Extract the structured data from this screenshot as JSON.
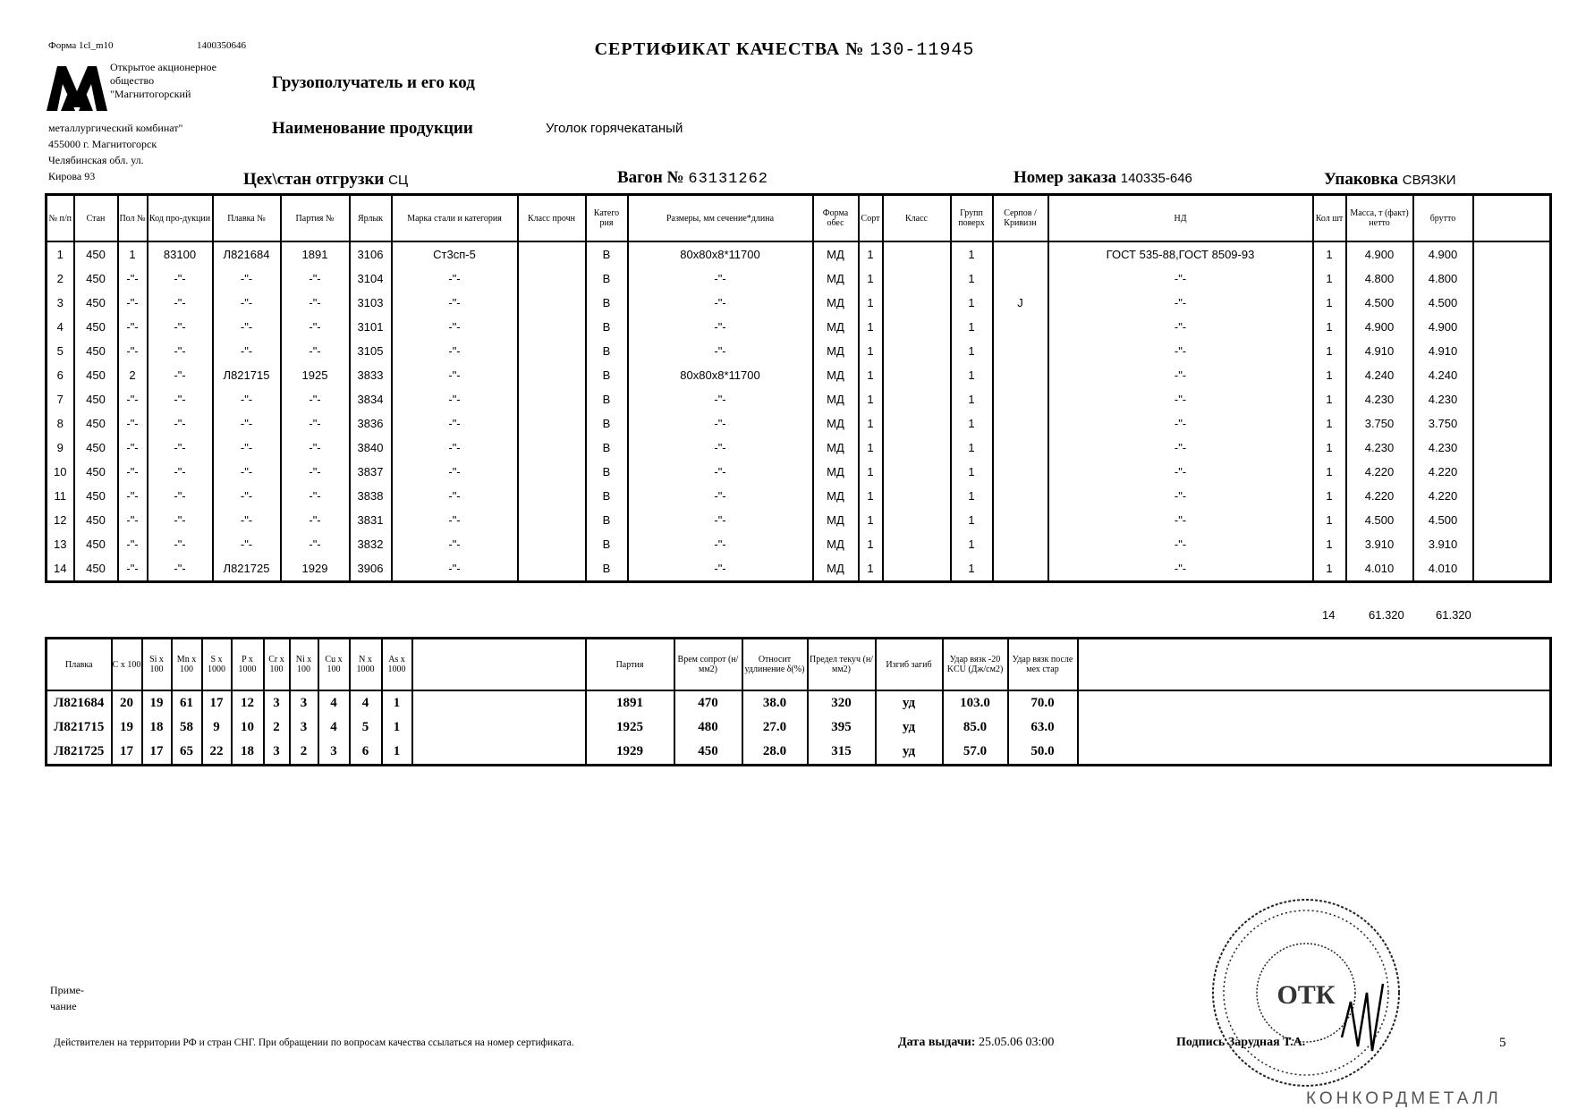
{
  "header": {
    "form_code": "Форма 1cl_m10",
    "doc_code": "1400350646",
    "title": "СЕРТИФИКАТ КАЧЕСТВА №",
    "certificate_number": "130-11945",
    "company_lines": [
      "Открытое акционерное",
      "общество",
      "\"Магнитогорский",
      "металлургический комбинат\"",
      "455000 г. Магнитогорск",
      "Челябинская обл. ул.",
      "Кирова 93"
    ],
    "consignee_label": "Грузополучатель и его код",
    "product_label": "Наименование продукции",
    "product_value": "Уголок горячекатаный",
    "shop_label": "Цех\\стан отгрузки",
    "shop_value": "СЦ",
    "wagon_label": "Вагон №",
    "wagon_value": "63131262",
    "order_label": "Номер заказа",
    "order_value": "140335-646",
    "packing_label": "Упаковка",
    "packing_value": "СВЯЗКИ"
  },
  "main_table": {
    "columns": [
      "№ п/п",
      "Стан",
      "Пол №",
      "Код про-дукции",
      "Плавка №",
      "Партия №",
      "Ярлык",
      "Марка стали и категория",
      "Класс прочн",
      "Катего рия",
      "Размеры, мм сечение*длина",
      "Форма обес",
      "Сорт",
      "Класс",
      "Групп поверх",
      "Серпов /Кривизн",
      "НД",
      "Кол шт",
      "Масса, т (факт) нетто",
      "брутто",
      ""
    ],
    "rows": [
      [
        "1",
        "450",
        "1",
        "83100",
        "Л821684",
        "1891",
        "3106",
        "Ст3сп-5",
        "",
        "В",
        "80х80х8*11700",
        "МД",
        "1",
        "",
        "1",
        "",
        "ГОСТ 535-88,ГОСТ 8509-93",
        "1",
        "4.900",
        "4.900",
        ""
      ],
      [
        "2",
        "450",
        "-\"-",
        "-\"-",
        "-\"-",
        "-\"-",
        "3104",
        "-\"-",
        "",
        "В",
        "-\"-",
        "МД",
        "1",
        "",
        "1",
        "",
        "-\"-",
        "1",
        "4.800",
        "4.800",
        ""
      ],
      [
        "3",
        "450",
        "-\"-",
        "-\"-",
        "-\"-",
        "-\"-",
        "3103",
        "-\"-",
        "",
        "В",
        "-\"-",
        "МД",
        "1",
        "",
        "1",
        "J",
        "-\"-",
        "1",
        "4.500",
        "4.500",
        ""
      ],
      [
        "4",
        "450",
        "-\"-",
        "-\"-",
        "-\"-",
        "-\"-",
        "3101",
        "-\"-",
        "",
        "В",
        "-\"-",
        "МД",
        "1",
        "",
        "1",
        "",
        "-\"-",
        "1",
        "4.900",
        "4.900",
        ""
      ],
      [
        "5",
        "450",
        "-\"-",
        "-\"-",
        "-\"-",
        "-\"-",
        "3105",
        "-\"-",
        "",
        "В",
        "-\"-",
        "МД",
        "1",
        "",
        "1",
        "",
        "-\"-",
        "1",
        "4.910",
        "4.910",
        ""
      ],
      [
        "6",
        "450",
        "2",
        "-\"-",
        "Л821715",
        "1925",
        "3833",
        "-\"-",
        "",
        "В",
        "80х80х8*11700",
        "МД",
        "1",
        "",
        "1",
        "",
        "-\"-",
        "1",
        "4.240",
        "4.240",
        ""
      ],
      [
        "7",
        "450",
        "-\"-",
        "-\"-",
        "-\"-",
        "-\"-",
        "3834",
        "-\"-",
        "",
        "В",
        "-\"-",
        "МД",
        "1",
        "",
        "1",
        "",
        "-\"-",
        "1",
        "4.230",
        "4.230",
        ""
      ],
      [
        "8",
        "450",
        "-\"-",
        "-\"-",
        "-\"-",
        "-\"-",
        "3836",
        "-\"-",
        "",
        "В",
        "-\"-",
        "МД",
        "1",
        "",
        "1",
        "",
        "-\"-",
        "1",
        "3.750",
        "3.750",
        ""
      ],
      [
        "9",
        "450",
        "-\"-",
        "-\"-",
        "-\"-",
        "-\"-",
        "3840",
        "-\"-",
        "",
        "В",
        "-\"-",
        "МД",
        "1",
        "",
        "1",
        "",
        "-\"-",
        "1",
        "4.230",
        "4.230",
        ""
      ],
      [
        "10",
        "450",
        "-\"-",
        "-\"-",
        "-\"-",
        "-\"-",
        "3837",
        "-\"-",
        "",
        "В",
        "-\"-",
        "МД",
        "1",
        "",
        "1",
        "",
        "-\"-",
        "1",
        "4.220",
        "4.220",
        ""
      ],
      [
        "11",
        "450",
        "-\"-",
        "-\"-",
        "-\"-",
        "-\"-",
        "3838",
        "-\"-",
        "",
        "В",
        "-\"-",
        "МД",
        "1",
        "",
        "1",
        "",
        "-\"-",
        "1",
        "4.220",
        "4.220",
        ""
      ],
      [
        "12",
        "450",
        "-\"-",
        "-\"-",
        "-\"-",
        "-\"-",
        "3831",
        "-\"-",
        "",
        "В",
        "-\"-",
        "МД",
        "1",
        "",
        "1",
        "",
        "-\"-",
        "1",
        "4.500",
        "4.500",
        ""
      ],
      [
        "13",
        "450",
        "-\"-",
        "-\"-",
        "-\"-",
        "-\"-",
        "3832",
        "-\"-",
        "",
        "В",
        "-\"-",
        "МД",
        "1",
        "",
        "1",
        "",
        "-\"-",
        "1",
        "3.910",
        "3.910",
        ""
      ],
      [
        "14",
        "450",
        "-\"-",
        "-\"-",
        "Л821725",
        "1929",
        "3906",
        "-\"-",
        "",
        "В",
        "-\"-",
        "МД",
        "1",
        "",
        "1",
        "",
        "-\"-",
        "1",
        "4.010",
        "4.010",
        ""
      ]
    ],
    "totals": {
      "count": "14",
      "net": "61.320",
      "gross": "61.320"
    }
  },
  "chem_table": {
    "columns": [
      "Плавка",
      "C x 100",
      "Si x 100",
      "Mn x 100",
      "S x 1000",
      "P x 1000",
      "Cr x 100",
      "Ni x 100",
      "Cu x 100",
      "N x 1000",
      "As x 1000",
      "",
      "Партия",
      "Врем сопрот (н/мм2)",
      "Относит удлинение δ(%)",
      "Предел текуч (н/мм2)",
      "Изгиб загиб",
      "Удар вязк -20 KCU (Дж/см2)",
      "Удар вязк после мех стар",
      ""
    ],
    "rows": [
      [
        "Л821684",
        "20",
        "19",
        "61",
        "17",
        "12",
        "3",
        "3",
        "4",
        "4",
        "1",
        "",
        "1891",
        "470",
        "38.0",
        "320",
        "уд",
        "103.0",
        "70.0",
        ""
      ],
      [
        "Л821715",
        "19",
        "18",
        "58",
        "9",
        "10",
        "2",
        "3",
        "4",
        "5",
        "1",
        "",
        "1925",
        "480",
        "27.0",
        "395",
        "уд",
        "85.0",
        "63.0",
        ""
      ],
      [
        "Л821725",
        "17",
        "17",
        "65",
        "22",
        "18",
        "3",
        "2",
        "3",
        "6",
        "1",
        "",
        "1929",
        "450",
        "28.0",
        "315",
        "уд",
        "57.0",
        "50.0",
        ""
      ]
    ]
  },
  "footer": {
    "note_label_1": "Приме-",
    "note_label_2": "чание",
    "validity_text": "Действителен на территории РФ и стран СНГ. При обращении по вопросам качества ссылаться на номер сертификата.",
    "issue_date_label": "Дата выдачи:",
    "issue_date_value": "25.05.06 03:00",
    "signature_label": "Подпись",
    "signature_name": "Зарудная Т.А.",
    "page_number": "5",
    "stamp_text": "ОТК",
    "watermark": "КОНКОРДМЕТАЛЛ"
  }
}
